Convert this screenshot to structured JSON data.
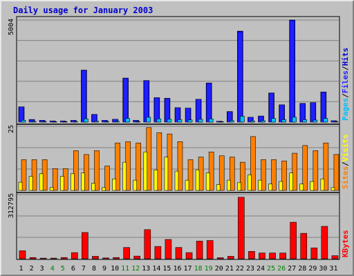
{
  "chart_data": {
    "type": "bar",
    "title": "Daily usage for January 2003",
    "categories": [
      "1",
      "2",
      "3",
      "4",
      "5",
      "6",
      "7",
      "8",
      "9",
      "10",
      "11",
      "12",
      "13",
      "14",
      "15",
      "16",
      "17",
      "18",
      "19",
      "20",
      "21",
      "22",
      "23",
      "24",
      "25",
      "26",
      "27",
      "28",
      "29",
      "30",
      "31"
    ],
    "weekend_days": [
      "4",
      "5",
      "11",
      "12",
      "18",
      "19",
      "25",
      "26"
    ],
    "colors": {
      "title": "#0000cc",
      "hits": "#0000cc",
      "files": "#2020ff",
      "pages": "#00c0ff",
      "visits": "#ffff00",
      "sites": "#ff8000",
      "kbytes": "#ff0000",
      "weekday_label": "#000000",
      "weekend_label": "#008000",
      "grid": "#808080",
      "background": "#c0c0c0",
      "separator": "#000000",
      "slash": "#000000"
    },
    "panels": [
      {
        "name": "hits_files_pages",
        "ymax_label": "5004",
        "ymax": 5004,
        "legend": [
          "Pages",
          "Files",
          "Hits"
        ],
        "series": [
          {
            "name": "Hits",
            "color": "#0000cc",
            "values": [
              750,
              130,
              90,
              60,
              60,
              90,
              2550,
              380,
              90,
              140,
              2160,
              90,
              2040,
              1200,
              1170,
              710,
              690,
              1120,
              1920,
              45,
              520,
              4460,
              240,
              300,
              1430,
              850,
              5004,
              920,
              960,
              1480,
              70
            ]
          },
          {
            "name": "Files",
            "color": "#2020ff",
            "values": [
              740,
              110,
              80,
              50,
              50,
              80,
              2520,
              370,
              80,
              130,
              2140,
              80,
              2020,
              1180,
              1150,
              700,
              680,
              1110,
              1900,
              40,
              500,
              4400,
              230,
              290,
              1410,
              840,
              4950,
              900,
              950,
              1460,
              60
            ]
          },
          {
            "name": "Pages",
            "color": "#00c0ff",
            "values": [
              90,
              40,
              30,
              20,
              20,
              30,
              160,
              50,
              30,
              40,
              180,
              30,
              240,
              160,
              140,
              120,
              110,
              140,
              160,
              20,
              70,
              290,
              60,
              70,
              180,
              120,
              240,
              120,
              100,
              180,
              30
            ]
          }
        ]
      },
      {
        "name": "visits_sites",
        "ymax_label": "25",
        "ymax": 25,
        "legend": [
          "Sites",
          "Visits"
        ],
        "series": [
          {
            "name": "Visits",
            "color": "#ffff00",
            "values": [
              3.2,
              5.5,
              6.5,
              1.1,
              5.5,
              6.5,
              6.8,
              2.8,
              1.1,
              4.5,
              11.0,
              4.0,
              15.0,
              8.0,
              13.0,
              7.5,
              4.0,
              8.0,
              6.8,
              2.3,
              4.0,
              3.0,
              6.0,
              4.0,
              2.5,
              3.5,
              6.8,
              2.5,
              3.5,
              4.5,
              1.1
            ]
          },
          {
            "name": "Sites",
            "color": "#ff8000",
            "values": [
              12.0,
              12.0,
              12.0,
              8.5,
              8.5,
              15.5,
              14.0,
              15.5,
              9.5,
              18.5,
              19.0,
              18.5,
              24.5,
              22.5,
              22.0,
              19.0,
              12.0,
              13.0,
              15.0,
              13.5,
              13.0,
              11.0,
              21.0,
              12.0,
              12.0,
              11.5,
              14.5,
              17.5,
              15.5,
              18.5,
              14.0
            ]
          }
        ]
      },
      {
        "name": "kbytes",
        "ymax_label": "312795",
        "ymax": 312795,
        "legend": [
          "KBytes"
        ],
        "series": [
          {
            "name": "KBytes",
            "color": "#ff0000",
            "values": [
              39000,
              6000,
              3000,
              3000,
              6000,
              30000,
              128000,
              12000,
              4000,
              6000,
              55000,
              13000,
              142000,
              60000,
              94000,
              55000,
              30000,
              86000,
              89000,
              5000,
              12000,
              300000,
              36000,
              28000,
              28000,
              28000,
              178000,
              124000,
              53000,
              158000,
              15000
            ]
          }
        ]
      }
    ],
    "xlabel": "",
    "grid": true
  }
}
